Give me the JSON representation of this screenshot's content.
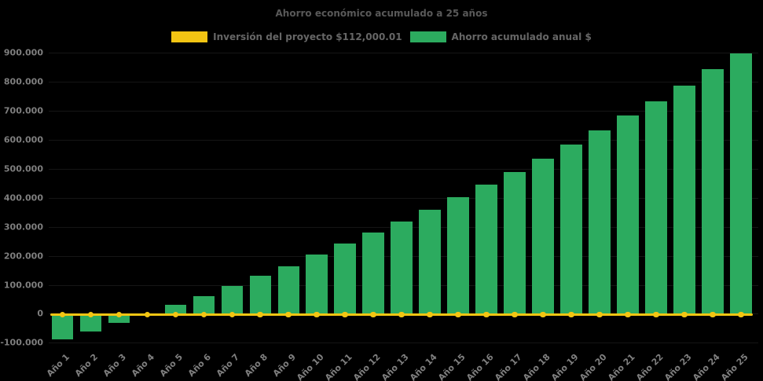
{
  "colors": {
    "background": "#000000",
    "bar": "#2CAB5F",
    "line": "#F3C513",
    "marker": "#F3C513",
    "title_text": "#595959",
    "legend_text": "#666666",
    "axis_text": "#7F7F7F",
    "gridline": "#151515"
  },
  "legend": {
    "items": [
      {
        "label": "Inversión del proyecto $112,000.01",
        "color": "#F3C513",
        "shape": "rect"
      },
      {
        "label": "Ahorro acumulado anual $",
        "color": "#2CAB5F",
        "shape": "rect"
      }
    ]
  },
  "chart_data": {
    "type": "bar",
    "title": "Ahorro económico acumulado a 25 años",
    "categories": [
      "Año 1",
      "Año 2",
      "Año 3",
      "Año 4",
      "Año 5",
      "Año 6",
      "Año 7",
      "Año 8",
      "Año 9",
      "Año 10",
      "Año 11",
      "Año 12",
      "Año 13",
      "Año 14",
      "Año 15",
      "Año 16",
      "Año 17",
      "Año 18",
      "Año 19",
      "Año 20",
      "Año 21",
      "Año 22",
      "Año 23",
      "Año 24",
      "Año 25"
    ],
    "series": [
      {
        "name": "Inversión del proyecto $112,000.01",
        "type": "line",
        "color": "#F3C513",
        "values": [
          0,
          0,
          0,
          0,
          0,
          0,
          0,
          0,
          0,
          0,
          0,
          0,
          0,
          0,
          0,
          0,
          0,
          0,
          0,
          0,
          0,
          0,
          0,
          0,
          0
        ]
      },
      {
        "name": "Ahorro acumulado anual $",
        "type": "bar",
        "color": "#2CAB5F",
        "values": [
          -89000,
          -62000,
          -31000,
          1000,
          31000,
          62000,
          95000,
          130000,
          165000,
          204000,
          241000,
          280000,
          319000,
          358000,
          402000,
          445000,
          489000,
          534000,
          583000,
          633000,
          683000,
          734000,
          788000,
          843000,
          897000
        ]
      }
    ],
    "xlabel": "",
    "ylabel": "",
    "ylim": [
      -100000,
      900000
    ],
    "ytick_step": 100000,
    "yticks": [
      {
        "label": "900.000",
        "value": 900000
      },
      {
        "label": "800.000",
        "value": 800000
      },
      {
        "label": "700.000",
        "value": 700000
      },
      {
        "label": "600.000",
        "value": 600000
      },
      {
        "label": "500.000",
        "value": 500000
      },
      {
        "label": "400.000",
        "value": 400000
      },
      {
        "label": "300.000",
        "value": 300000
      },
      {
        "label": "200.000",
        "value": 200000
      },
      {
        "label": "100.000",
        "value": 100000
      },
      {
        "label": "0",
        "value": 0
      },
      {
        "label": "-100.000",
        "value": -100000
      }
    ],
    "legend_position": "top",
    "grid": "horizontal-faint"
  }
}
